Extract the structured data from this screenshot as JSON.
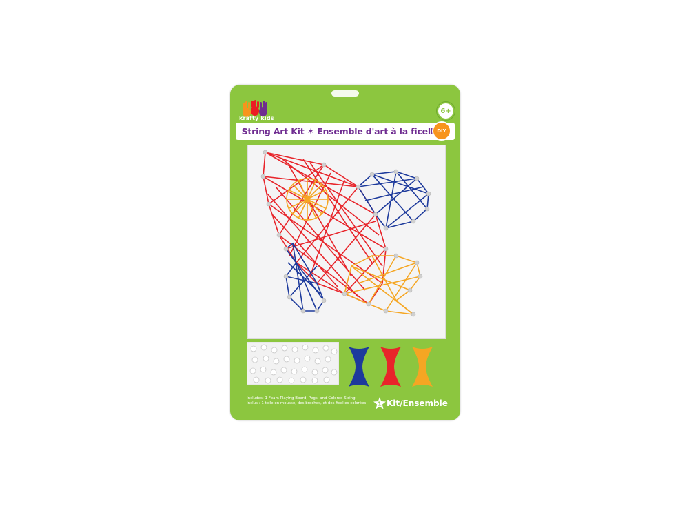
{
  "package": {
    "brand": "krafty kids",
    "age": "6+",
    "title": "String Art Kit ✶ Ensemble d'art à la ficelle",
    "diy_label": "DIY",
    "includes_en": "Includes: 1 Foam Playing Board, Pegs, and Colored String!",
    "includes_fr": "Inclus : 1 toile en mousse, des broches, et des ficelles colorées!",
    "kit_number": "1",
    "kit_label": "Kit/Ensemble"
  },
  "colors": {
    "card_green": "#8cc63f",
    "title_purple": "#6f2c91",
    "string_red": "#e8242a",
    "string_blue": "#1d3a9c",
    "string_orange": "#f5a623",
    "peg": "#d9d9d9"
  },
  "icons": [
    "hand-print-logo-icon",
    "age-badge-icon",
    "diy-badge-icon",
    "star-icon"
  ]
}
